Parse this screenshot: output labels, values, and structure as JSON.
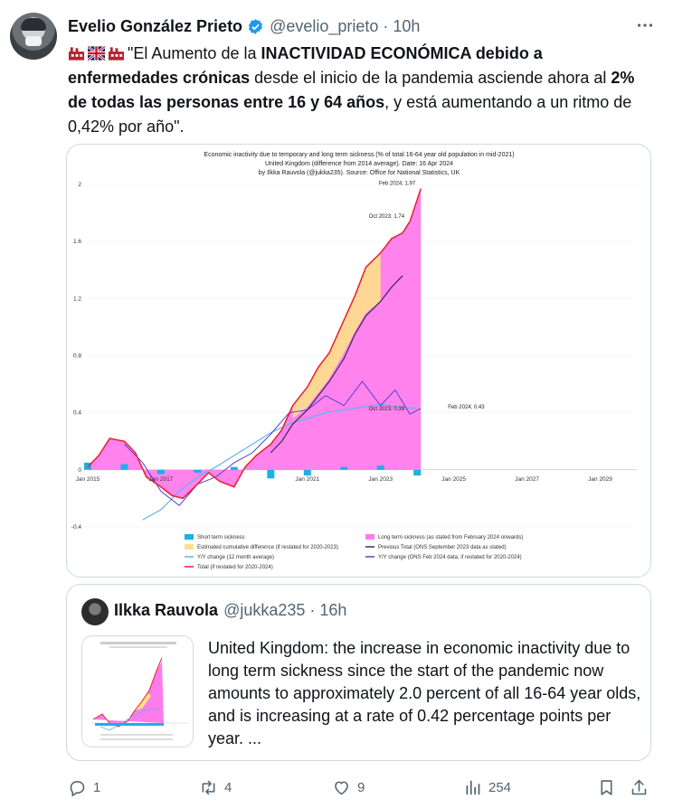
{
  "tweet": {
    "author_name": "Evelio González Prieto",
    "author_handle": "@evelio_prieto",
    "separator": "·",
    "time": "10h",
    "text_intro": "\"El Aumento de la ",
    "text_bold1": "INACTIVIDAD ECONÓMICA debido a enfermedades crónicas",
    "text_mid": " desde el inicio de la pandemia asciende ahora al ",
    "text_bold2": "2% de todas las personas entre 16 y 64 años",
    "text_end": ", y está aumentando a un ritmo de 0,42% por año\".",
    "emojis": [
      "factory-emoji",
      "uk-flag-emoji",
      "factory-emoji"
    ]
  },
  "quote": {
    "author_name": "Ilkka Rauvola",
    "author_handle": "@jukka235",
    "separator": "·",
    "time": "16h",
    "text": "United Kingdom: the increase in economic inactivity due to long term sickness since the start of the pandemic now amounts to approximately 2.0 percent of all 16-64 year olds, and is increasing at a rate of 0.42 percentage points per year. ..."
  },
  "actions": {
    "replies": "1",
    "reposts": "4",
    "likes": "9",
    "views": "254"
  },
  "colors": {
    "accent": "#1d9bf0",
    "long_term": "#ff7bec",
    "estimated": "#ffe08a",
    "total": "#e8212b",
    "short_term": "#1ab0e8",
    "yoy": "#3b6fd8",
    "previous": "#3a2a55"
  },
  "chart_data": {
    "type": "area",
    "title": "Economic inactivity due to temporary and long term sickness (% of total 16-64 year old population in mid-2021)",
    "subtitle1": "United Kingdom (difference from 2014 average). Date: 16 Apr 2024",
    "subtitle2": "by Ilkka Rauvola (@jukka235). Source: Office for National Statistics, UK",
    "x_ticks": [
      "Jan 2015",
      "Jan 2017",
      "Jan 2021",
      "Jan 2023",
      "Jan 2025",
      "Jan 2027",
      "Jan 2029"
    ],
    "x_tick_years": [
      2015,
      2017,
      2021,
      2023,
      2025,
      2027,
      2029
    ],
    "y_ticks": [
      "2",
      "1.6",
      "1.2",
      "0.8",
      "0.4",
      "0",
      "-0.4"
    ],
    "y_tick_values": [
      2,
      1.6,
      1.2,
      0.8,
      0.4,
      0,
      -0.4
    ],
    "ylim": [
      -0.4,
      2.0
    ],
    "xlim": [
      2015.0,
      2030.0
    ],
    "annotations": [
      {
        "text": "Feb 2024; 1.97",
        "x": 2024.1,
        "y": 1.97
      },
      {
        "text": "Oct 2023; 1.74",
        "x": 2023.8,
        "y": 1.74
      },
      {
        "text": "Oct 2023; 0.39",
        "x": 2023.8,
        "y": 0.39
      },
      {
        "text": "Feb 2024; 0.43",
        "x": 2024.1,
        "y": 0.43
      }
    ],
    "legend": [
      {
        "label": "Short term sickness",
        "kind": "box",
        "color": "#1ab0e8"
      },
      {
        "label": "Long term sickness (as stated from February 2024 onwards)",
        "kind": "box",
        "color": "#ff7bec"
      },
      {
        "label": "Estimated cumulative difference (if restated for 2020-2023)",
        "kind": "box",
        "color": "#ffe08a"
      },
      {
        "label": "Previous Total (ONS September 2023 data as stated)",
        "kind": "line",
        "color": "#3a2a55"
      },
      {
        "label": "Y/Y change (12 month average)",
        "kind": "line",
        "color": "#5fb4f0"
      },
      {
        "label": "Y/Y change (ONS Feb 2024 data, if restated for 2020-2024)",
        "kind": "line",
        "color": "#5a3fd0"
      },
      {
        "label": "Total (if restated for 2020-2024)",
        "kind": "line",
        "color": "#e8212b"
      }
    ],
    "series": [
      {
        "name": "Total (if restated for 2020-2024)",
        "x": [
          2015.0,
          2015.3,
          2015.6,
          2016.0,
          2016.3,
          2016.6,
          2017.0,
          2017.3,
          2017.6,
          2018.0,
          2018.3,
          2018.6,
          2019.0,
          2019.3,
          2019.6,
          2020.0,
          2020.3,
          2020.6,
          2021.0,
          2021.3,
          2021.6,
          2022.0,
          2022.3,
          2022.6,
          2023.0,
          2023.3,
          2023.6,
          2023.8,
          2024.1
        ],
        "y": [
          0.02,
          0.1,
          0.22,
          0.2,
          0.12,
          -0.05,
          -0.12,
          -0.18,
          -0.2,
          -0.1,
          -0.02,
          -0.08,
          -0.12,
          0.02,
          0.1,
          0.18,
          0.28,
          0.45,
          0.58,
          0.72,
          0.82,
          1.05,
          1.22,
          1.42,
          1.52,
          1.62,
          1.66,
          1.74,
          1.97
        ]
      },
      {
        "name": "Previous Total (ONS September 2023 data as stated)",
        "x": [
          2020.0,
          2020.3,
          2020.6,
          2021.0,
          2021.3,
          2021.6,
          2022.0,
          2022.3,
          2022.6,
          2023.0,
          2023.3,
          2023.6
        ],
        "y": [
          0.12,
          0.2,
          0.32,
          0.42,
          0.52,
          0.62,
          0.78,
          0.95,
          1.08,
          1.18,
          1.28,
          1.36
        ]
      },
      {
        "name": "Y/Y change (ONS Feb 2024 data, if restated for 2020-2024)",
        "x": [
          2016.0,
          2016.5,
          2017.0,
          2017.5,
          2018.0,
          2018.5,
          2019.0,
          2019.5,
          2020.0,
          2020.5,
          2021.0,
          2021.5,
          2022.0,
          2022.5,
          2023.0,
          2023.4,
          2023.8,
          2024.1
        ],
        "y": [
          0.18,
          0.05,
          -0.15,
          -0.25,
          -0.1,
          -0.05,
          0.05,
          0.12,
          0.25,
          0.4,
          0.42,
          0.52,
          0.45,
          0.62,
          0.45,
          0.56,
          0.39,
          0.43
        ]
      },
      {
        "name": "Y/Y change (12 month average)",
        "x": [
          2016.5,
          2017.0,
          2017.5,
          2018.0,
          2018.5,
          2019.0,
          2019.5,
          2020.0,
          2020.5,
          2021.0,
          2021.5,
          2022.0,
          2022.5,
          2023.0,
          2023.5,
          2024.0
        ],
        "y": [
          -0.35,
          -0.28,
          -0.15,
          -0.05,
          0.02,
          0.1,
          0.18,
          0.26,
          0.32,
          0.36,
          0.4,
          0.42,
          0.44,
          0.46,
          0.44,
          0.43
        ]
      },
      {
        "name": "Short term sickness",
        "x": [
          2015.0,
          2016.0,
          2017.0,
          2018.0,
          2019.0,
          2020.0,
          2021.0,
          2022.0,
          2023.0,
          2024.0
        ],
        "y": [
          0.05,
          0.04,
          -0.03,
          -0.02,
          0.02,
          -0.06,
          -0.04,
          0.02,
          0.03,
          -0.04
        ]
      }
    ]
  }
}
